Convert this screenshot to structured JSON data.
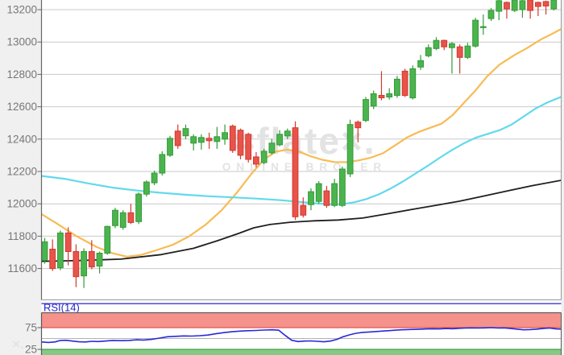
{
  "watermark": {
    "logo_text": "=flate×.",
    "tagline": "ONLINE BROKER",
    "corner_mark": "×."
  },
  "rsi": {
    "label": "RSI(14)",
    "levels": {
      "overbought": 75,
      "midline": 50,
      "oversold": 25
    },
    "tick_labels": [
      "75",
      "25"
    ]
  },
  "chart_data": [
    {
      "type": "candlestick",
      "title": "",
      "xlabel": "",
      "ylabel": "",
      "grid": true,
      "y_ticks": [
        13200,
        13000,
        12800,
        12600,
        12400,
        12200,
        12000,
        11800,
        11600
      ],
      "ylim": [
        11407,
        13260
      ],
      "candles_ohlc": [
        [
          11650,
          11790,
          11630,
          11765
        ],
        [
          11720,
          11780,
          11585,
          11600
        ],
        [
          11605,
          11835,
          11590,
          11820
        ],
        [
          11820,
          11855,
          11620,
          11705
        ],
        [
          11705,
          11750,
          11485,
          11550
        ],
        [
          11555,
          11725,
          11480,
          11705
        ],
        [
          11705,
          11775,
          11595,
          11610
        ],
        [
          11615,
          11705,
          11570,
          11695
        ],
        [
          11695,
          11865,
          11685,
          11860
        ],
        [
          11865,
          11975,
          11850,
          11960
        ],
        [
          11855,
          11960,
          11840,
          11945
        ],
        [
          11945,
          12000,
          11875,
          11885
        ],
        [
          11890,
          12070,
          11875,
          12060
        ],
        [
          12060,
          12145,
          12045,
          12135
        ],
        [
          12130,
          12205,
          12115,
          12190
        ],
        [
          12190,
          12325,
          12175,
          12305
        ],
        [
          12300,
          12420,
          12290,
          12405
        ],
        [
          12450,
          12490,
          12340,
          12360
        ],
        [
          12420,
          12490,
          12400,
          12465
        ],
        [
          12375,
          12430,
          12330,
          12415
        ],
        [
          12380,
          12430,
          12335,
          12410
        ],
        [
          12405,
          12440,
          12340,
          12390
        ],
        [
          12385,
          12475,
          12340,
          12415
        ],
        [
          12400,
          12490,
          12365,
          12440
        ],
        [
          12480,
          12490,
          12315,
          12330
        ],
        [
          12455,
          12465,
          12275,
          12300
        ],
        [
          12430,
          12440,
          12255,
          12275
        ],
        [
          12290,
          12320,
          12225,
          12245
        ],
        [
          12255,
          12340,
          12245,
          12325
        ],
        [
          12315,
          12400,
          12305,
          12375
        ],
        [
          12365,
          12455,
          12355,
          12430
        ],
        [
          12420,
          12465,
          12400,
          12450
        ],
        [
          12470,
          12510,
          11900,
          11920
        ],
        [
          11990,
          12040,
          11915,
          11930
        ],
        [
          11995,
          12095,
          11960,
          12075
        ],
        [
          12015,
          12140,
          12000,
          12125
        ],
        [
          12080,
          12110,
          11975,
          11990
        ],
        [
          11990,
          12155,
          11980,
          12125
        ],
        [
          11990,
          12230,
          11980,
          12215
        ],
        [
          12185,
          12520,
          12165,
          12490
        ],
        [
          12505,
          12515,
          12380,
          12470
        ],
        [
          12515,
          12660,
          12505,
          12645
        ],
        [
          12605,
          12700,
          12585,
          12680
        ],
        [
          12670,
          12820,
          12640,
          12655
        ],
        [
          12660,
          12715,
          12645,
          12680
        ],
        [
          12670,
          12790,
          12655,
          12770
        ],
        [
          12820,
          12835,
          12660,
          12670
        ],
        [
          12655,
          12855,
          12645,
          12835
        ],
        [
          12845,
          12920,
          12828,
          12885
        ],
        [
          12915,
          12985,
          12905,
          12965
        ],
        [
          12960,
          13030,
          12950,
          13010
        ],
        [
          13010,
          13015,
          12950,
          12970
        ],
        [
          12965,
          13000,
          12805,
          12990
        ],
        [
          12970,
          12985,
          12805,
          12905
        ],
        [
          12905,
          12995,
          12895,
          12975
        ],
        [
          12975,
          13150,
          12965,
          13135
        ],
        [
          13090,
          13170,
          13045,
          13095
        ],
        [
          13145,
          13210,
          13130,
          13195
        ],
        [
          13190,
          13270,
          13135,
          13255
        ],
        [
          13245,
          13250,
          13145,
          13205
        ],
        [
          13195,
          13265,
          13185,
          13260
        ],
        [
          13200,
          13260,
          13150,
          13255
        ],
        [
          13260,
          13265,
          13145,
          13195
        ],
        [
          13245,
          13250,
          13160,
          13220
        ],
        [
          13250,
          13255,
          13170,
          13222
        ],
        [
          13205,
          13265,
          13195,
          13260
        ]
      ],
      "overlays": [
        {
          "name": "ma-fast-orange",
          "points": [
            [
              52,
              11935
            ],
            [
              70,
              11880
            ],
            [
              95,
              11800
            ],
            [
              120,
              11733
            ],
            [
              140,
              11694
            ],
            [
              158,
              11673
            ],
            [
              175,
              11684
            ],
            [
              195,
              11715
            ],
            [
              215,
              11748
            ],
            [
              235,
              11800
            ],
            [
              255,
              11870
            ],
            [
              275,
              11960
            ],
            [
              295,
              12075
            ],
            [
              312,
              12185
            ],
            [
              328,
              12275
            ],
            [
              342,
              12322
            ],
            [
              356,
              12335
            ],
            [
              370,
              12325
            ],
            [
              385,
              12295
            ],
            [
              400,
              12272
            ],
            [
              415,
              12258
            ],
            [
              430,
              12257
            ],
            [
              445,
              12268
            ],
            [
              460,
              12285
            ],
            [
              475,
              12312
            ],
            [
              490,
              12360
            ],
            [
              505,
              12410
            ],
            [
              520,
              12445
            ],
            [
              535,
              12472
            ],
            [
              548,
              12495
            ],
            [
              562,
              12550
            ],
            [
              575,
              12620
            ],
            [
              590,
              12700
            ],
            [
              605,
              12790
            ],
            [
              620,
              12860
            ],
            [
              638,
              12918
            ],
            [
              655,
              12965
            ],
            [
              672,
              13018
            ],
            [
              685,
              13050
            ],
            [
              697,
              13082
            ]
          ]
        },
        {
          "name": "ma-mid-cyan",
          "points": [
            [
              52,
              12172
            ],
            [
              80,
              12155
            ],
            [
              110,
              12126
            ],
            [
              140,
              12100
            ],
            [
              170,
              12082
            ],
            [
              200,
              12068
            ],
            [
              230,
              12056
            ],
            [
              260,
              12047
            ],
            [
              290,
              12040
            ],
            [
              320,
              12032
            ],
            [
              350,
              12022
            ],
            [
              372,
              12012
            ],
            [
              392,
              12003
            ],
            [
              410,
              11997
            ],
            [
              425,
              11998
            ],
            [
              440,
              12010
            ],
            [
              455,
              12030
            ],
            [
              470,
              12058
            ],
            [
              485,
              12095
            ],
            [
              500,
              12138
            ],
            [
              515,
              12185
            ],
            [
              530,
              12232
            ],
            [
              545,
              12282
            ],
            [
              560,
              12330
            ],
            [
              575,
              12372
            ],
            [
              590,
              12408
            ],
            [
              605,
              12432
            ],
            [
              620,
              12455
            ],
            [
              635,
              12490
            ],
            [
              650,
              12540
            ],
            [
              665,
              12590
            ],
            [
              680,
              12628
            ],
            [
              697,
              12662
            ]
          ]
        },
        {
          "name": "ma-slow-black",
          "points": [
            [
              52,
              11645
            ],
            [
              100,
              11650
            ],
            [
              150,
              11658
            ],
            [
              200,
              11686
            ],
            [
              240,
              11725
            ],
            [
              270,
              11772
            ],
            [
              295,
              11815
            ],
            [
              315,
              11852
            ],
            [
              335,
              11872
            ],
            [
              360,
              11886
            ],
            [
              390,
              11895
            ],
            [
              420,
              11900
            ],
            [
              450,
              11912
            ],
            [
              480,
              11938
            ],
            [
              510,
              11964
            ],
            [
              540,
              11990
            ],
            [
              570,
              12016
            ],
            [
              600,
              12048
            ],
            [
              630,
              12080
            ],
            [
              660,
              12112
            ],
            [
              697,
              12146
            ]
          ]
        }
      ]
    },
    {
      "type": "line",
      "title": "RSI(14)",
      "ylim": [
        0,
        100
      ],
      "y_ticks": [
        75,
        25
      ],
      "values": [
        [
          52,
          42
        ],
        [
          60,
          41
        ],
        [
          68,
          42
        ],
        [
          75,
          45.5
        ],
        [
          82,
          46
        ],
        [
          90,
          44
        ],
        [
          98,
          42.5
        ],
        [
          106,
          42
        ],
        [
          114,
          43.5
        ],
        [
          122,
          43
        ],
        [
          130,
          44
        ],
        [
          140,
          45.5
        ],
        [
          150,
          45
        ],
        [
          160,
          45.5
        ],
        [
          170,
          47
        ],
        [
          178,
          46.5
        ],
        [
          188,
          48
        ],
        [
          198,
          51
        ],
        [
          208,
          54
        ],
        [
          218,
          55
        ],
        [
          228,
          56
        ],
        [
          238,
          55.5
        ],
        [
          248,
          56.5
        ],
        [
          258,
          58
        ],
        [
          268,
          61
        ],
        [
          278,
          63.5
        ],
        [
          288,
          65.5
        ],
        [
          298,
          67
        ],
        [
          308,
          68
        ],
        [
          318,
          68.5
        ],
        [
          328,
          69.5
        ],
        [
          338,
          70
        ],
        [
          346,
          69
        ],
        [
          354,
          57
        ],
        [
          362,
          46
        ],
        [
          370,
          43
        ],
        [
          378,
          44
        ],
        [
          386,
          44.5
        ],
        [
          394,
          43.5
        ],
        [
          402,
          42.5
        ],
        [
          410,
          44
        ],
        [
          418,
          48
        ],
        [
          426,
          54
        ],
        [
          434,
          58.5
        ],
        [
          442,
          62
        ],
        [
          450,
          64
        ],
        [
          458,
          65
        ],
        [
          466,
          66
        ],
        [
          474,
          67
        ],
        [
          482,
          68
        ],
        [
          490,
          69
        ],
        [
          498,
          70
        ],
        [
          506,
          70.5
        ],
        [
          514,
          71
        ],
        [
          522,
          71.5
        ],
        [
          530,
          72
        ],
        [
          538,
          72.5
        ],
        [
          546,
          72
        ],
        [
          554,
          73
        ],
        [
          562,
          72.5
        ],
        [
          570,
          73.5
        ],
        [
          578,
          74
        ],
        [
          586,
          74.5
        ],
        [
          594,
          74
        ],
        [
          602,
          74.5
        ],
        [
          610,
          75
        ],
        [
          618,
          74
        ],
        [
          626,
          74.5
        ],
        [
          634,
          73
        ],
        [
          642,
          71.5
        ],
        [
          650,
          70
        ],
        [
          658,
          70.5
        ],
        [
          666,
          71.5
        ],
        [
          674,
          73
        ],
        [
          682,
          74
        ],
        [
          690,
          72
        ],
        [
          697,
          71.5
        ]
      ]
    }
  ],
  "colors": {
    "background": "#f0f0f0",
    "plot_bg": "#ffffff",
    "grid": "#c9c9c9",
    "axis_left": "#666666",
    "frame": "#999999",
    "tick_text": "#777777",
    "candle_up_fill": "#4bb44e",
    "candle_up_stroke": "#349a38",
    "candle_down_fill": "#e8534a",
    "candle_down_stroke": "#d03a31",
    "ma_fast": "#f8bb54",
    "ma_mid": "#62d9ec",
    "ma_slow": "#1f1f1f",
    "rsi_line": "#2929d6",
    "rsi_label": "#2424cc",
    "separator_blue": "#3b3bd1",
    "overbought_band": "#f4928b",
    "overbought_line": "#df564e",
    "oversold_band": "#85c985",
    "oversold_line": "#43a047",
    "midline": "#b3b3b3",
    "panel_frame": "#5a5a5a",
    "watermark": "#e3e3e3"
  }
}
